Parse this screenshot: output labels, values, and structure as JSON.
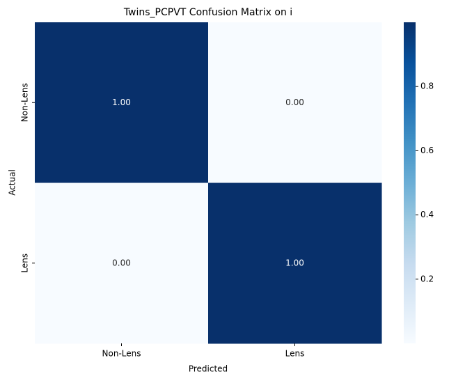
{
  "chart_data": {
    "type": "heatmap",
    "title": "Twins_PCPVT Confusion Matrix on i",
    "x_label": "Predicted",
    "y_label": "Actual",
    "x_categories": [
      "Non-Lens",
      "Lens"
    ],
    "y_categories": [
      "Non-Lens",
      "Lens"
    ],
    "values": [
      [
        1,
        0
      ],
      [
        0,
        1
      ]
    ],
    "value_labels": [
      [
        "1.00",
        "0.00"
      ],
      [
        "0.00",
        "1.00"
      ]
    ],
    "clim": [
      0,
      1
    ],
    "cticks": [
      0.2,
      0.4,
      0.6,
      0.8
    ],
    "colormap": [
      "#f7fbff",
      "#deebf7",
      "#c6dbef",
      "#9ecae1",
      "#6baed6",
      "#4292c6",
      "#2171b5",
      "#08519c",
      "#08306b"
    ]
  }
}
